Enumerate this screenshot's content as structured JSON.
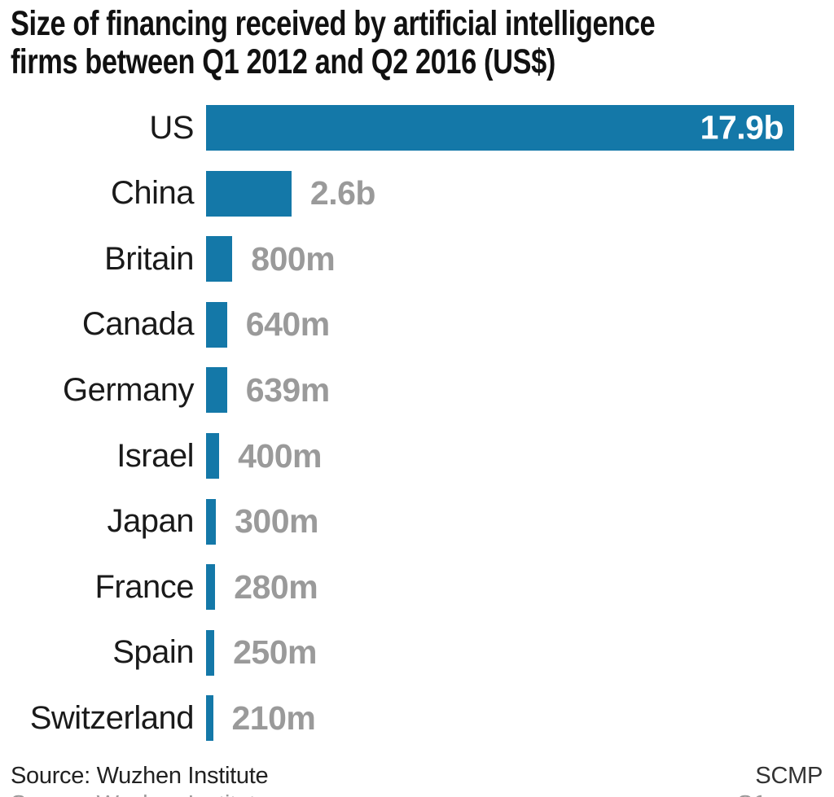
{
  "title": {
    "line1": "Size of financing received by artificial intelligence",
    "line2": "firms between Q1 2012 and Q2 2016 (US$)"
  },
  "chart_data": {
    "type": "bar",
    "orientation": "horizontal",
    "title": "Size of financing received by artificial intelligence firms between Q1 2012 and Q2 2016 (US$)",
    "unit": "US$",
    "categories": [
      "US",
      "China",
      "Britain",
      "Canada",
      "Germany",
      "Israel",
      "Japan",
      "France",
      "Spain",
      "Switzerland"
    ],
    "values_millions": [
      17900,
      2600,
      800,
      640,
      639,
      400,
      300,
      280,
      250,
      210
    ],
    "value_labels": [
      "17.9b",
      "2.6b",
      "800m",
      "640m",
      "639m",
      "400m",
      "300m",
      "280m",
      "250m",
      "210m"
    ],
    "xlim": [
      0,
      17900
    ],
    "grid": "off",
    "legend": "none",
    "bar_color": "#1478a8",
    "value_label_color": "#9a9a9a",
    "inside_value_label_color": "#ffffff",
    "category_label_color": "#1a1a1a"
  },
  "footer": {
    "source": "Source: Wuzhen Institute",
    "credit": "SCMP"
  }
}
